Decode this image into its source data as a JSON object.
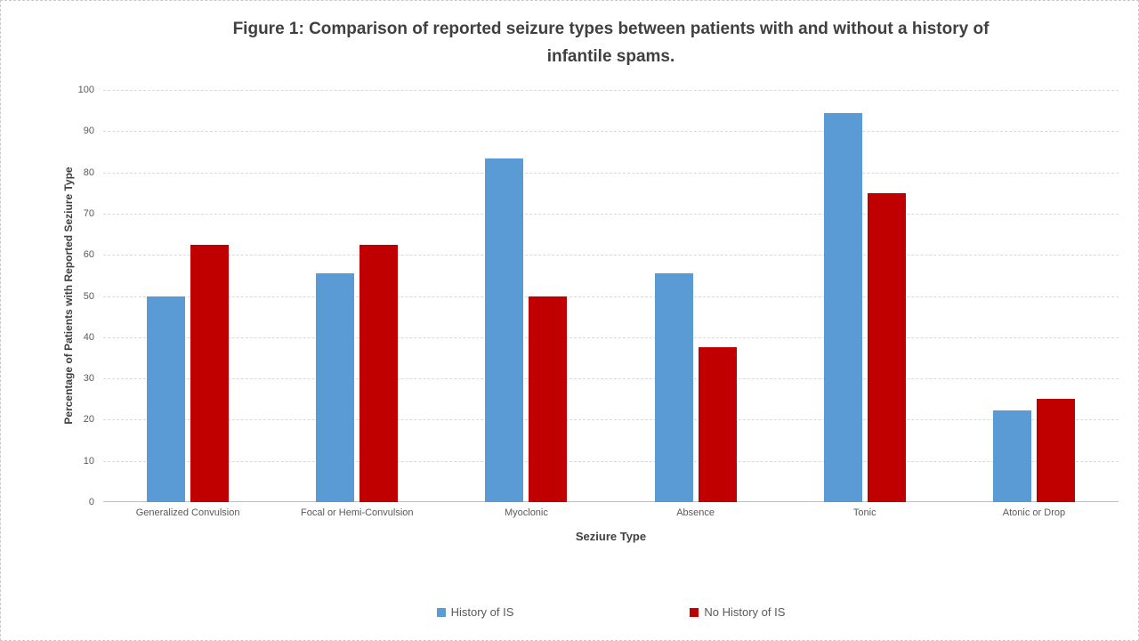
{
  "figure": {
    "title_lines": [
      "Figure 1: Comparison of reported seizure types between patients with and without a history of",
      "infantile spams."
    ]
  },
  "chart_data": {
    "type": "bar",
    "title": "Figure 1: Comparison of reported seizure types between patients with and without a history of infantile spams.",
    "categories": [
      "Generalized Convulsion",
      "Focal or Hemi-Convulsion",
      "Myoclonic",
      "Absence",
      "Tonic",
      "Atonic or Drop"
    ],
    "series": [
      {
        "name": "History of IS",
        "color": "#5B9BD5",
        "values": [
          50,
          55.5,
          83.3,
          55.5,
          94.4,
          22.2
        ]
      },
      {
        "name": "No History of IS",
        "color": "#C00000",
        "values": [
          62.5,
          62.5,
          50,
          37.5,
          75,
          25
        ]
      }
    ],
    "xlabel": "Seziure Type",
    "ylabel": "Percentage of Patients with Reported Seziure Type",
    "ylim": [
      0,
      100
    ],
    "yticks": [
      0,
      10,
      20,
      30,
      40,
      50,
      60,
      70,
      80,
      90,
      100
    ],
    "grid": "horizontal-dashed",
    "legend_position": "bottom"
  },
  "style": {
    "grid_color": "#D9D9D9",
    "axis_line_color": "#BFBFBF",
    "title_color": "#404040",
    "label_color": "#595959",
    "background": "#FFFFFF",
    "slide_border_color": "#C9C9C9"
  }
}
